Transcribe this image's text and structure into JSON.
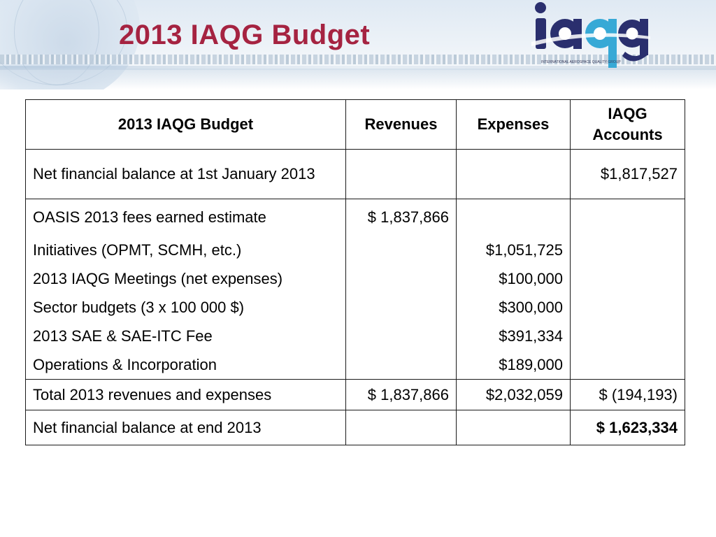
{
  "slide": {
    "title": "2013 IAQG Budget",
    "logo_text": "iaqg",
    "logo_tagline": "INTERNATIONAL AEROSPACE QUALITY GROUP"
  },
  "table": {
    "headers": [
      "2013 IAQG Budget",
      "Revenues",
      "Expenses",
      "IAQG Accounts"
    ],
    "opening": {
      "label": "Net financial balance at 1st January 2013",
      "revenues": "",
      "expenses": "",
      "accounts": "$1,817,527"
    },
    "items": [
      {
        "label": "OASIS 2013 fees earned estimate",
        "revenues": "$ 1,837,866",
        "expenses": "",
        "accounts": ""
      },
      {
        "label": "Initiatives (OPMT, SCMH, etc.)",
        "revenues": "",
        "expenses": "$1,051,725",
        "accounts": ""
      },
      {
        "label": "2013 IAQG Meetings (net expenses)",
        "revenues": "",
        "expenses": "$100,000",
        "accounts": ""
      },
      {
        "label": "Sector budgets (3 x 100 000 $)",
        "revenues": "",
        "expenses": "$300,000",
        "accounts": ""
      },
      {
        "label": "2013 SAE & SAE-ITC Fee",
        "revenues": "",
        "expenses": "$391,334",
        "accounts": ""
      },
      {
        "label": "Operations & Incorporation",
        "revenues": "",
        "expenses": "$189,000",
        "accounts": ""
      }
    ],
    "total": {
      "label": "Total 2013 revenues and expenses",
      "revenues": "$ 1,837,866",
      "expenses": "$2,032,059",
      "accounts": "$ (194,193)"
    },
    "closing": {
      "label": "Net financial balance at end 2013",
      "revenues": "",
      "expenses": "",
      "accounts": "$ 1,623,334"
    }
  },
  "colors": {
    "title": "#a52341",
    "logo_navy": "#2a2f6e",
    "logo_cyan": "#37a9d6",
    "border": "#1a1a1a"
  }
}
